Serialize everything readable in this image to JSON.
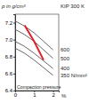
{
  "chart_data": {
    "type": "line",
    "title": "KIP 300 K",
    "y_label": "ρ in g/cm³",
    "x_label": "%",
    "annotation": "Compaction pressure",
    "x": [
      0,
      0.5,
      1,
      1.5,
      2
    ],
    "series": [
      {
        "name": "600",
        "color": "#555555",
        "values": [
          7.22,
          7.16,
          7.08,
          6.98,
          6.88
        ]
      },
      {
        "name": "500",
        "color": "#555555",
        "values": [
          7.12,
          7.06,
          6.98,
          6.88,
          6.78
        ]
      },
      {
        "name": "400",
        "color": "#555555",
        "values": [
          6.98,
          6.92,
          6.84,
          6.75,
          6.66
        ]
      },
      {
        "name": "350 N/mm²",
        "color": "#555555",
        "values": [
          6.9,
          6.84,
          6.76,
          6.67,
          6.58
        ]
      },
      {
        "name": null,
        "color": "#e0202a",
        "values": [
          null,
          7.17,
          6.98,
          6.76,
          null
        ]
      }
    ],
    "xlim": [
      0,
      2.3
    ],
    "xticks": [
      0,
      1,
      2
    ],
    "ylim": [
      6.4,
      7.3
    ],
    "yticks": [
      {
        "value": 6.4,
        "label": "6.4"
      },
      {
        "value": 6.6,
        "label": "6.6"
      },
      {
        "value": 6.8,
        "label": "6.8"
      },
      {
        "value": 7.0,
        "label": "7.0"
      },
      {
        "value": 7.2,
        "label": "7.2"
      }
    ],
    "grid": false
  }
}
